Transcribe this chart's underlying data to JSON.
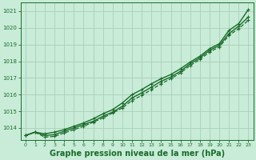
{
  "bg_color": "#c8ecd8",
  "grid_color": "#a8cdb8",
  "line_color": "#1a6b2a",
  "xlabel": "Graphe pression niveau de la mer (hPa)",
  "xlabel_fontsize": 7.0,
  "xlabel_color": "#1a6b2a",
  "ytick_color": "#1a6b2a",
  "xtick_color": "#1a6b2a",
  "ylim": [
    1013.3,
    1021.5
  ],
  "xlim": [
    -0.5,
    23.5
  ],
  "yticks": [
    1014,
    1015,
    1016,
    1017,
    1018,
    1019,
    1020,
    1021
  ],
  "xticks": [
    0,
    1,
    2,
    3,
    4,
    5,
    6,
    7,
    8,
    9,
    10,
    11,
    12,
    13,
    14,
    15,
    16,
    17,
    18,
    19,
    20,
    21,
    22,
    23
  ],
  "series": [
    {
      "x": [
        0,
        1,
        2,
        3,
        4,
        5,
        6,
        7,
        8,
        9,
        10,
        11,
        12,
        13,
        14,
        15,
        16,
        17,
        18,
        19,
        20,
        21,
        22,
        23
      ],
      "y": [
        1013.55,
        1013.75,
        1013.65,
        1013.75,
        1013.9,
        1014.1,
        1014.3,
        1014.55,
        1014.85,
        1015.1,
        1015.5,
        1016.0,
        1016.3,
        1016.65,
        1016.95,
        1017.2,
        1017.55,
        1017.95,
        1018.3,
        1018.75,
        1019.05,
        1019.85,
        1020.25,
        1021.1
      ],
      "style": "-",
      "marker": "+",
      "lw": 1.0
    },
    {
      "x": [
        0,
        1,
        2,
        3,
        4,
        5,
        6,
        7,
        8,
        9,
        10,
        11,
        12,
        13,
        14,
        15,
        16,
        17,
        18,
        19,
        20,
        21,
        22,
        23
      ],
      "y": [
        1013.55,
        1013.75,
        1013.55,
        1013.6,
        1013.8,
        1014.0,
        1014.2,
        1014.4,
        1014.7,
        1014.95,
        1015.3,
        1015.8,
        1016.1,
        1016.45,
        1016.8,
        1017.05,
        1017.4,
        1017.85,
        1018.2,
        1018.65,
        1018.95,
        1019.65,
        1020.1,
        1020.65
      ],
      "style": "-",
      "marker": "+",
      "lw": 1.0
    },
    {
      "x": [
        0,
        1,
        2,
        3,
        4,
        5,
        6,
        7,
        8,
        9,
        10,
        11,
        12,
        13,
        14,
        15,
        16,
        17,
        18,
        19,
        20,
        21,
        22,
        23
      ],
      "y": [
        1013.55,
        1013.75,
        1013.45,
        1013.5,
        1013.7,
        1013.9,
        1014.1,
        1014.35,
        1014.6,
        1014.9,
        1015.2,
        1015.65,
        1015.95,
        1016.3,
        1016.65,
        1016.95,
        1017.3,
        1017.75,
        1018.1,
        1018.55,
        1018.85,
        1019.55,
        1019.95,
        1020.45
      ],
      "style": "--",
      "marker": "+",
      "lw": 0.9
    }
  ]
}
